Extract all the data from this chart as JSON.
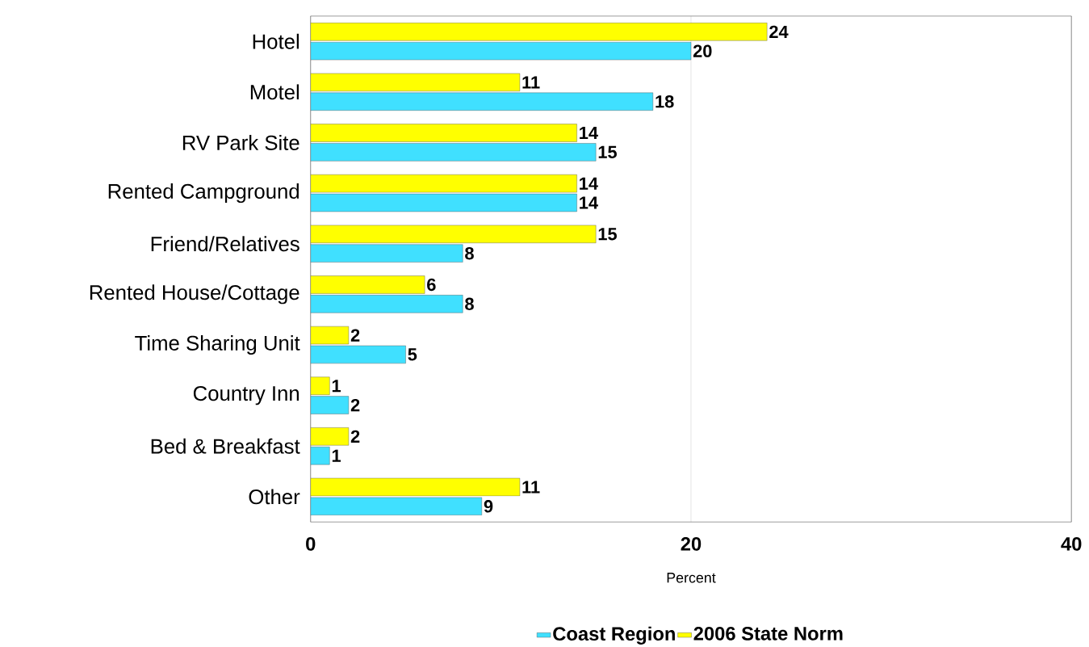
{
  "chart_data": {
    "type": "bar",
    "orientation": "horizontal",
    "xlabel": "Percent",
    "categories": [
      "Hotel",
      "Motel",
      "RV Park Site",
      "Rented Campground",
      "Friend/Relatives",
      "Rented House/Cottage",
      "Time Sharing Unit",
      "Country Inn",
      "Bed & Breakfast",
      "Other"
    ],
    "series": [
      {
        "name": "Coast Region",
        "color": "#40e0ff",
        "values": [
          20,
          18,
          15,
          14,
          8,
          8,
          5,
          2,
          1,
          9
        ]
      },
      {
        "name": "2006 State Norm",
        "color": "#ffff00",
        "values": [
          24,
          11,
          14,
          14,
          15,
          6,
          2,
          1,
          2,
          11
        ]
      }
    ],
    "xlim": [
      0,
      40
    ],
    "xticks": [
      0,
      20,
      40
    ],
    "grid": "x",
    "legend": "bottom",
    "data_labels": true
  }
}
